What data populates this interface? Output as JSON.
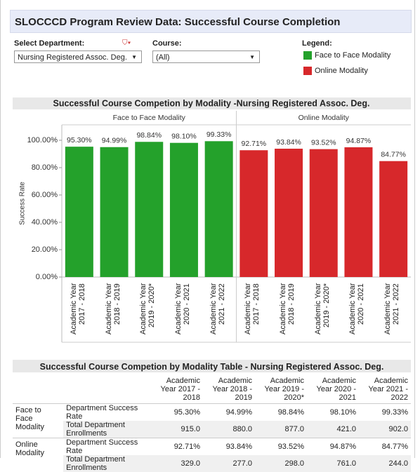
{
  "header": {
    "title": "SLOCCCD Program Review Data: Successful Course Completion"
  },
  "filters": [
    {
      "label": "Select Department:",
      "value": "Nursing Registered Assoc. Deg."
    },
    {
      "label": "Course:",
      "value": "(All)"
    }
  ],
  "legend": {
    "title": "Legend:"
  },
  "chart_data": {
    "type": "bar",
    "title": "Successful Course Competion by Modality -Nursing Registered Assoc. Deg.",
    "y_label": "Success Rate",
    "categories": [
      "Academic Year 2017 - 2018",
      "Academic Year 2018 - 2019",
      "Academic Year 2019 - 2020*",
      "Academic Year 2020 - 2021",
      "Academic Year 2021 - 2022"
    ],
    "series": [
      {
        "name": "Face to Face Modality",
        "color": "#24a12b",
        "values": [
          95.3,
          94.99,
          98.84,
          98.1,
          99.33
        ],
        "value_labels": [
          "95.30%",
          "94.99%",
          "98.84%",
          "98.10%",
          "99.33%"
        ]
      },
      {
        "name": "Online Modality",
        "color": "#d7282b",
        "values": [
          92.71,
          93.84,
          93.52,
          94.87,
          84.77
        ],
        "value_labels": [
          "92.71%",
          "93.84%",
          "93.52%",
          "94.87%",
          "84.77%"
        ]
      }
    ],
    "ylim": [
      0,
      110
    ],
    "yticks": [
      {
        "value": 0,
        "label": "0.00%"
      },
      {
        "value": 20,
        "label": "20.00%"
      },
      {
        "value": 40,
        "label": "40.00%"
      },
      {
        "value": 60,
        "label": "60.00%"
      },
      {
        "value": 80,
        "label": "80.00%"
      },
      {
        "value": 100,
        "label": "100.00%"
      }
    ],
    "grid": false
  },
  "table": {
    "title": "Successful Course Competion by Modality Table - Nursing Registered Assoc. Deg.",
    "columns": [
      "Academic Year 2017 - 2018",
      "Academic Year 2018 - 2019",
      "Academic Year 2019 - 2020*",
      "Academic Year 2020 - 2021",
      "Academic Year 2021 - 2022"
    ],
    "groups": [
      {
        "name": "Face to Face Modality",
        "rows": [
          [
            "Department Success Rate",
            "95.30%",
            "94.99%",
            "98.84%",
            "98.10%",
            "99.33%"
          ],
          [
            "Total Department Enrollments",
            "915.0",
            "880.0",
            "877.0",
            "421.0",
            "902.0"
          ]
        ]
      },
      {
        "name": "Online Modality",
        "rows": [
          [
            "Department Success Rate",
            "92.71%",
            "93.84%",
            "93.52%",
            "94.87%",
            "84.77%"
          ],
          [
            "Total Department Enrollments",
            "329.0",
            "277.0",
            "298.0",
            "761.0",
            "244.0"
          ]
        ]
      }
    ]
  }
}
